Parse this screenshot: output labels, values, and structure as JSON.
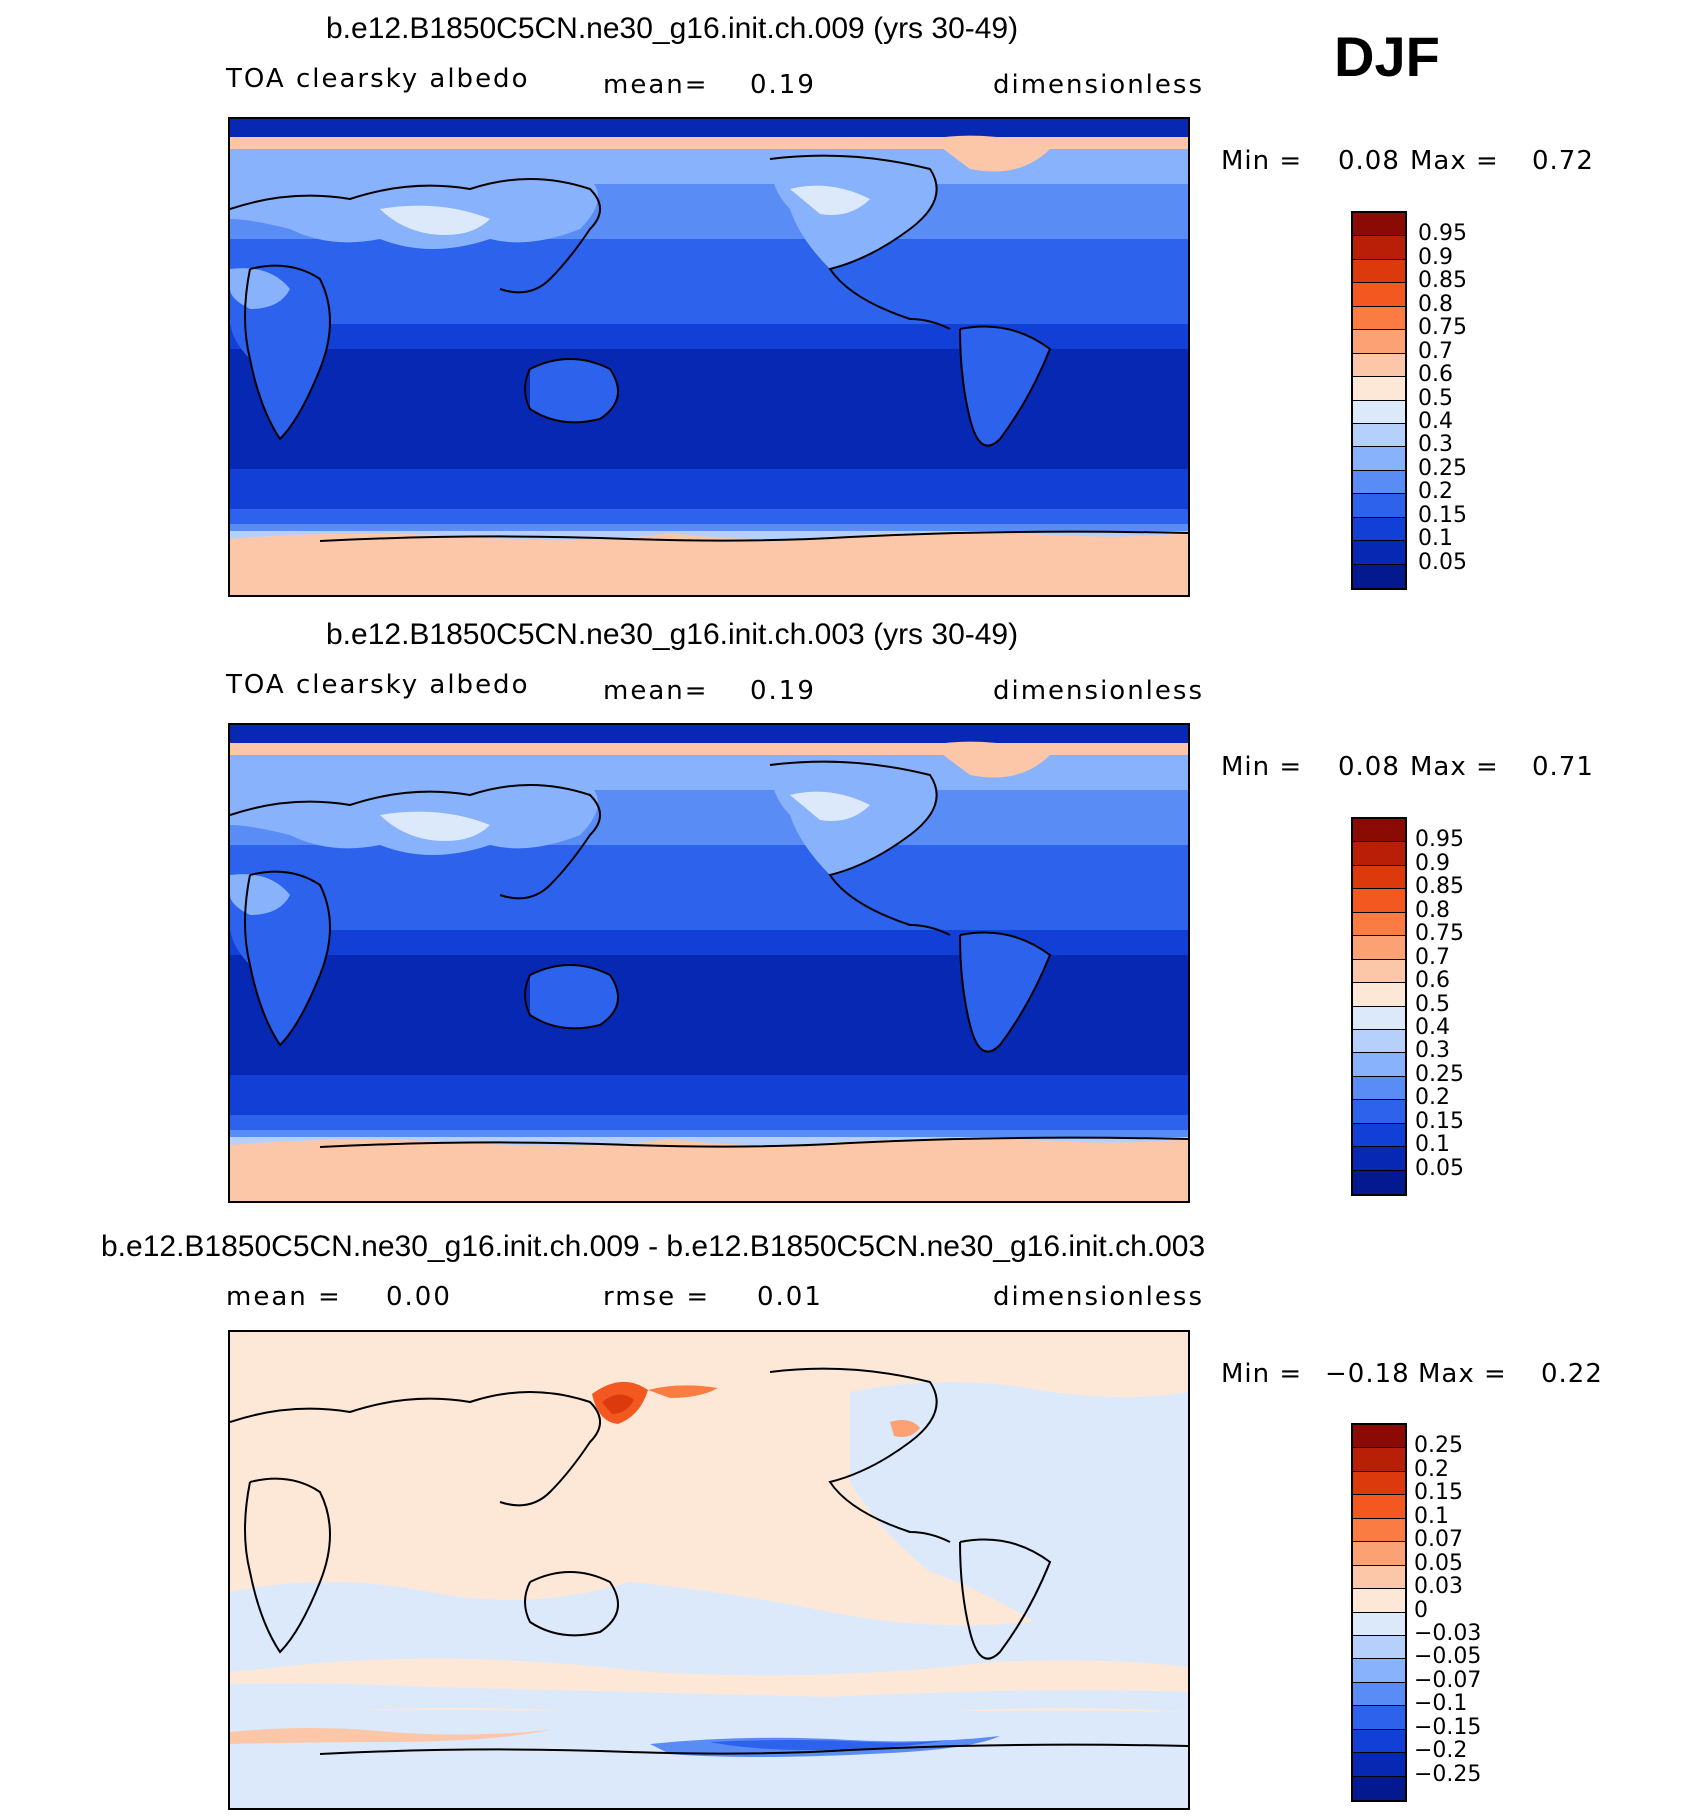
{
  "season": "DJF",
  "panels": [
    {
      "title": "b.e12.B1850C5CN.ne30_g16.init.ch.009 (yrs 30-49)",
      "left_label": "TOA clearsky albedo",
      "mid_label": "mean=",
      "mid_value": "0.19",
      "units": "dimensionless",
      "min_label": "Min =",
      "min_value": "0.08",
      "max_label": "Max =",
      "max_value": "0.72",
      "colorbar_levels": [
        "0.95",
        "0.9",
        "0.85",
        "0.8",
        "0.75",
        "0.7",
        "0.6",
        "0.5",
        "0.4",
        "0.3",
        "0.25",
        "0.2",
        "0.15",
        "0.1",
        "0.05"
      ],
      "colorbar_colors": [
        "#8b0a04",
        "#b81f06",
        "#dc3a0c",
        "#f2581f",
        "#fb7c42",
        "#fca174",
        "#fcc7a9",
        "#fde8d8",
        "#dbe9fb",
        "#b5d1fb",
        "#88b2fb",
        "#5a8cf5",
        "#2c62ec",
        "#1240d6",
        "#0728b3",
        "#041890"
      ]
    },
    {
      "title": "b.e12.B1850C5CN.ne30_g16.init.ch.003 (yrs 30-49)",
      "left_label": "TOA clearsky albedo",
      "mid_label": "mean=",
      "mid_value": "0.19",
      "units": "dimensionless",
      "min_label": "Min =",
      "min_value": "0.08",
      "max_label": "Max =",
      "max_value": "0.71",
      "colorbar_levels": [
        "0.95",
        "0.9",
        "0.85",
        "0.8",
        "0.75",
        "0.7",
        "0.6",
        "0.5",
        "0.4",
        "0.3",
        "0.25",
        "0.2",
        "0.15",
        "0.1",
        "0.05"
      ],
      "colorbar_colors": [
        "#8b0a04",
        "#b81f06",
        "#dc3a0c",
        "#f2581f",
        "#fb7c42",
        "#fca174",
        "#fcc7a9",
        "#fde8d8",
        "#dbe9fb",
        "#b5d1fb",
        "#88b2fb",
        "#5a8cf5",
        "#2c62ec",
        "#1240d6",
        "#0728b3",
        "#041890"
      ]
    },
    {
      "title": "b.e12.B1850C5CN.ne30_g16.init.ch.009 - b.e12.B1850C5CN.ne30_g16.init.ch.003",
      "left_label": "mean =",
      "left_value": "0.00",
      "mid_label": "rmse =",
      "mid_value": "0.01",
      "units": "dimensionless",
      "min_label": "Min =",
      "min_value": "−0.18",
      "max_label": "Max =",
      "max_value": "0.22",
      "colorbar_levels": [
        "0.25",
        "0.2",
        "0.15",
        "0.1",
        "0.07",
        "0.05",
        "0.03",
        "0",
        "−0.03",
        "−0.05",
        "−0.07",
        "−0.1",
        "−0.15",
        "−0.2",
        "−0.25"
      ],
      "colorbar_colors": [
        "#8b0a04",
        "#b81f06",
        "#dc3a0c",
        "#f2581f",
        "#fb7c42",
        "#fca174",
        "#fcc7a9",
        "#fde8d8",
        "#dbe9fb",
        "#b5d1fb",
        "#88b2fb",
        "#5a8cf5",
        "#2c62ec",
        "#1240d6",
        "#0728b3",
        "#041890"
      ]
    }
  ]
}
